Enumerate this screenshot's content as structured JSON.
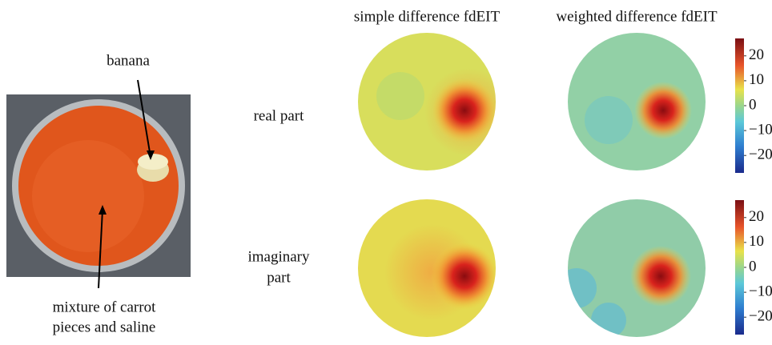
{
  "photo": {
    "banana_label": "banana",
    "mixture_label": [
      "mixture of carrot",
      "pieces and saline"
    ]
  },
  "columns": [
    "simple difference fdEIT",
    "weighted difference fdEIT"
  ],
  "rows": [
    [
      "real part"
    ],
    [
      "imaginary",
      "part"
    ]
  ],
  "colorbars": [
    {
      "range": [
        -27,
        27
      ],
      "ticks": [
        20,
        10,
        0,
        {
          "value": -10,
          "label": "−10"
        },
        {
          "value": -20,
          "label": "−20"
        }
      ]
    },
    {
      "range": [
        -27,
        27
      ],
      "ticks": [
        20,
        10,
        0,
        {
          "value": -10,
          "label": "−10"
        },
        {
          "value": -20,
          "label": "−20"
        }
      ]
    }
  ]
}
